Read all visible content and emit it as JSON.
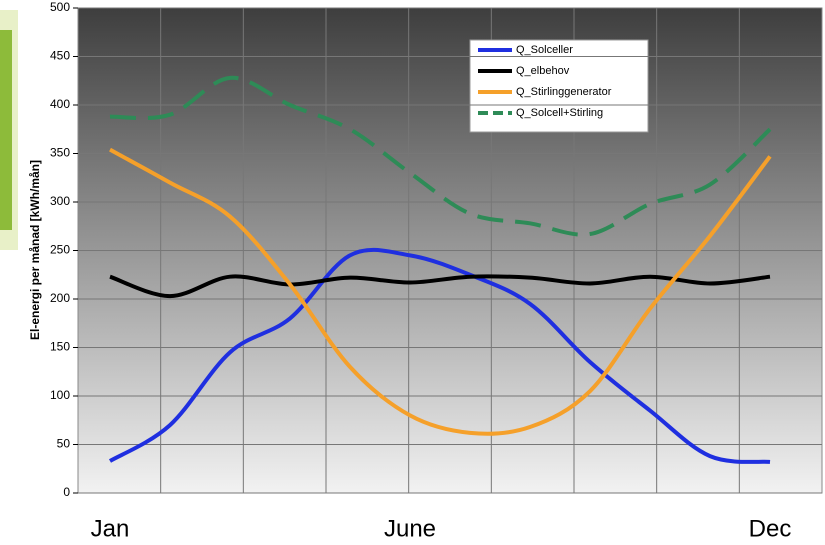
{
  "chart_data": {
    "type": "line",
    "y_label": "El-energi per månad [kWh/mån]",
    "categories": [
      "Jan",
      null,
      null,
      null,
      null,
      "June",
      null,
      null,
      null,
      null,
      null,
      "Dec"
    ],
    "ylim": [
      0,
      500
    ],
    "yticks": [
      0,
      50,
      100,
      150,
      200,
      250,
      300,
      350,
      400,
      450,
      500
    ],
    "grid": true,
    "series": [
      {
        "name": "Q_Solceller",
        "color": "#1f2fe0",
        "dash": false,
        "values": [
          33,
          70,
          145,
          180,
          245,
          245,
          225,
          195,
          135,
          85,
          38,
          32
        ]
      },
      {
        "name": "Q_elbehov",
        "color": "#000000",
        "dash": false,
        "values": [
          223,
          203,
          223,
          215,
          222,
          217,
          223,
          222,
          216,
          223,
          216,
          223
        ]
      },
      {
        "name": "Q_Stirlinggenerator",
        "color": "#f5a02a",
        "dash": false,
        "values": [
          354,
          320,
          285,
          215,
          130,
          80,
          62,
          68,
          105,
          190,
          265,
          347
        ]
      },
      {
        "name": "Q_Solcell+Stirling",
        "color": "#2e8b57",
        "dash": true,
        "values": [
          388,
          390,
          428,
          400,
          375,
          330,
          288,
          278,
          267,
          298,
          318,
          375
        ]
      }
    ]
  }
}
